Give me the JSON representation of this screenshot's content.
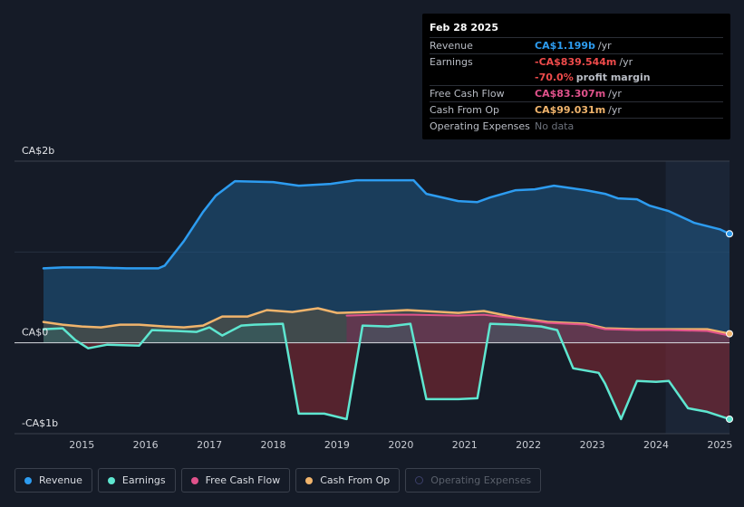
{
  "tooltip": {
    "date": "Feb 28 2025",
    "rows": [
      {
        "label": "Revenue",
        "value": "CA$1.199b",
        "unit": "/yr"
      },
      {
        "label": "Earnings",
        "value": "-CA$839.544m",
        "unit": "/yr"
      },
      {
        "label": "",
        "value": "-70.0%",
        "unit": "profit margin"
      },
      {
        "label": "Free Cash Flow",
        "value": "CA$83.307m",
        "unit": "/yr"
      },
      {
        "label": "Cash From Op",
        "value": "CA$99.031m",
        "unit": "/yr"
      },
      {
        "label": "Operating Expenses",
        "value": "No data",
        "unit": ""
      }
    ]
  },
  "legend": [
    {
      "label": "Revenue",
      "color": "#2d9cf0",
      "enabled": true
    },
    {
      "label": "Earnings",
      "color": "#5ee6d0",
      "enabled": true
    },
    {
      "label": "Free Cash Flow",
      "color": "#e0528b",
      "enabled": true
    },
    {
      "label": "Cash From Op",
      "color": "#f0b46c",
      "enabled": true
    },
    {
      "label": "Operating Expenses",
      "color": "#3c3f6a",
      "enabled": false
    }
  ],
  "chart_data": {
    "type": "area",
    "ylim": [
      -1.0,
      2.0
    ],
    "y_unit": "CA$ billions",
    "y_tick_labels": [
      {
        "value": 2,
        "label": "CA$2b"
      },
      {
        "value": 0,
        "label": "CA$0"
      },
      {
        "value": -1,
        "label": "-CA$1b"
      }
    ],
    "x_range": [
      2014.4,
      2025.15
    ],
    "x_tick_labels": [
      "2015",
      "2016",
      "2017",
      "2018",
      "2019",
      "2020",
      "2021",
      "2022",
      "2023",
      "2024",
      "2025"
    ],
    "highlight_from": 2024.15,
    "grid": true,
    "series": [
      {
        "name": "Revenue",
        "color": "#2d9cf0",
        "points": [
          [
            2014.4,
            0.82
          ],
          [
            2014.7,
            0.83
          ],
          [
            2015.2,
            0.83
          ],
          [
            2015.7,
            0.82
          ],
          [
            2016.2,
            0.82
          ],
          [
            2016.3,
            0.85
          ],
          [
            2016.6,
            1.12
          ],
          [
            2016.9,
            1.44
          ],
          [
            2017.1,
            1.62
          ],
          [
            2017.4,
            1.78
          ],
          [
            2018.0,
            1.77
          ],
          [
            2018.4,
            1.73
          ],
          [
            2018.9,
            1.75
          ],
          [
            2019.3,
            1.79
          ],
          [
            2020.2,
            1.79
          ],
          [
            2020.4,
            1.64
          ],
          [
            2020.9,
            1.56
          ],
          [
            2021.2,
            1.55
          ],
          [
            2021.4,
            1.6
          ],
          [
            2021.8,
            1.68
          ],
          [
            2022.1,
            1.69
          ],
          [
            2022.4,
            1.73
          ],
          [
            2022.7,
            1.7
          ],
          [
            2022.9,
            1.68
          ],
          [
            2023.2,
            1.64
          ],
          [
            2023.4,
            1.59
          ],
          [
            2023.7,
            1.58
          ],
          [
            2023.9,
            1.51
          ],
          [
            2024.2,
            1.45
          ],
          [
            2024.6,
            1.32
          ],
          [
            2025.0,
            1.25
          ],
          [
            2025.15,
            1.2
          ]
        ]
      },
      {
        "name": "Earnings",
        "color": "#5ee6d0",
        "points": [
          [
            2014.4,
            0.15
          ],
          [
            2014.7,
            0.16
          ],
          [
            2014.9,
            0.03
          ],
          [
            2015.1,
            -0.06
          ],
          [
            2015.4,
            -0.02
          ],
          [
            2015.9,
            -0.03
          ],
          [
            2016.1,
            0.14
          ],
          [
            2016.5,
            0.13
          ],
          [
            2016.8,
            0.12
          ],
          [
            2017.0,
            0.17
          ],
          [
            2017.2,
            0.08
          ],
          [
            2017.5,
            0.19
          ],
          [
            2017.7,
            0.2
          ],
          [
            2018.15,
            0.21
          ],
          [
            2018.4,
            -0.78
          ],
          [
            2018.8,
            -0.78
          ],
          [
            2019.15,
            -0.84
          ],
          [
            2019.4,
            0.19
          ],
          [
            2019.8,
            0.18
          ],
          [
            2020.15,
            0.21
          ],
          [
            2020.4,
            -0.62
          ],
          [
            2020.9,
            -0.62
          ],
          [
            2021.2,
            -0.61
          ],
          [
            2021.4,
            0.21
          ],
          [
            2021.8,
            0.2
          ],
          [
            2022.2,
            0.18
          ],
          [
            2022.45,
            0.14
          ],
          [
            2022.7,
            -0.28
          ],
          [
            2023.1,
            -0.33
          ],
          [
            2023.2,
            -0.45
          ],
          [
            2023.45,
            -0.84
          ],
          [
            2023.7,
            -0.42
          ],
          [
            2024.0,
            -0.43
          ],
          [
            2024.2,
            -0.42
          ],
          [
            2024.5,
            -0.72
          ],
          [
            2024.8,
            -0.76
          ],
          [
            2025.15,
            -0.84
          ]
        ]
      },
      {
        "name": "Free Cash Flow",
        "color": "#e0528b",
        "points": [
          [
            2019.15,
            0.3
          ],
          [
            2019.6,
            0.31
          ],
          [
            2020.2,
            0.31
          ],
          [
            2020.9,
            0.3
          ],
          [
            2021.3,
            0.31
          ],
          [
            2021.8,
            0.27
          ],
          [
            2022.3,
            0.22
          ],
          [
            2022.9,
            0.2
          ],
          [
            2023.2,
            0.15
          ],
          [
            2023.7,
            0.14
          ],
          [
            2024.2,
            0.14
          ],
          [
            2024.8,
            0.13
          ],
          [
            2025.15,
            0.08
          ]
        ]
      },
      {
        "name": "Cash From Op",
        "color": "#f0b46c",
        "points": [
          [
            2014.4,
            0.23
          ],
          [
            2014.7,
            0.2
          ],
          [
            2015.0,
            0.18
          ],
          [
            2015.3,
            0.17
          ],
          [
            2015.6,
            0.2
          ],
          [
            2015.9,
            0.2
          ],
          [
            2016.3,
            0.18
          ],
          [
            2016.6,
            0.17
          ],
          [
            2016.9,
            0.19
          ],
          [
            2017.2,
            0.29
          ],
          [
            2017.6,
            0.29
          ],
          [
            2017.9,
            0.36
          ],
          [
            2018.3,
            0.34
          ],
          [
            2018.7,
            0.38
          ],
          [
            2019.0,
            0.33
          ],
          [
            2019.5,
            0.34
          ],
          [
            2020.1,
            0.36
          ],
          [
            2020.9,
            0.33
          ],
          [
            2021.3,
            0.35
          ],
          [
            2021.8,
            0.28
          ],
          [
            2022.3,
            0.23
          ],
          [
            2022.9,
            0.21
          ],
          [
            2023.2,
            0.16
          ],
          [
            2023.7,
            0.15
          ],
          [
            2024.2,
            0.15
          ],
          [
            2024.8,
            0.15
          ],
          [
            2025.15,
            0.1
          ]
        ]
      }
    ]
  }
}
